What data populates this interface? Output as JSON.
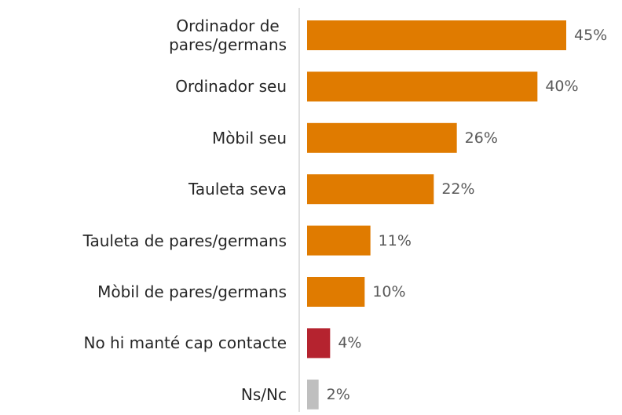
{
  "chart_data": {
    "type": "bar",
    "orientation": "horizontal",
    "categories": [
      "Ordinador de\npares/germans",
      "Ordinador seu",
      "Mòbil seu",
      "Tauleta seva",
      "Tauleta de pares/germans",
      "Mòbil de pares/germans",
      "No hi manté cap contacte",
      "Ns/Nc"
    ],
    "values": [
      45,
      40,
      26,
      22,
      11,
      10,
      4,
      2
    ],
    "value_labels": [
      "45%",
      "40%",
      "26%",
      "22%",
      "11%",
      "10%",
      "4%",
      "2%"
    ],
    "colors": [
      "#e07b00",
      "#e07b00",
      "#e07b00",
      "#e07b00",
      "#e07b00",
      "#e07b00",
      "#b5232f",
      "#bfbfbf"
    ]
  }
}
